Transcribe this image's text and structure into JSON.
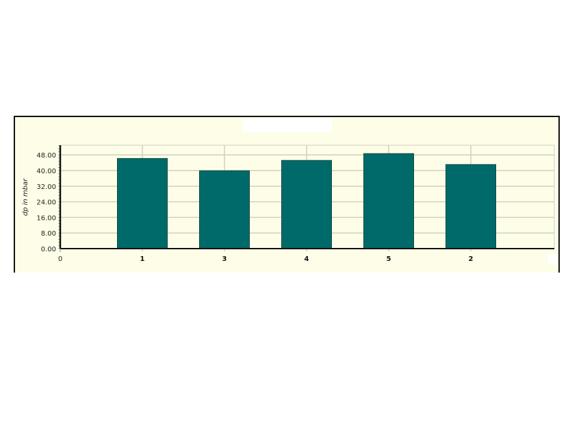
{
  "chart_data": {
    "type": "bar",
    "title": "",
    "xlabel": "",
    "ylabel": "dp in mbar",
    "categories": [
      "1",
      "3",
      "4",
      "5",
      "2"
    ],
    "values": [
      46.2,
      39.9,
      45.2,
      48.7,
      43.1
    ],
    "x_origin_label": "0",
    "yticks": [
      "0.00",
      "8.00",
      "16.00",
      "24.00",
      "32.00",
      "40.00",
      "48.00"
    ],
    "ylim": [
      0,
      53
    ],
    "grid": true,
    "legend": "none",
    "colors": {
      "bar": "#006a6a",
      "bar_border": "#0a4a40",
      "background": "#fefee8",
      "grid": "#cfcfc0"
    }
  }
}
